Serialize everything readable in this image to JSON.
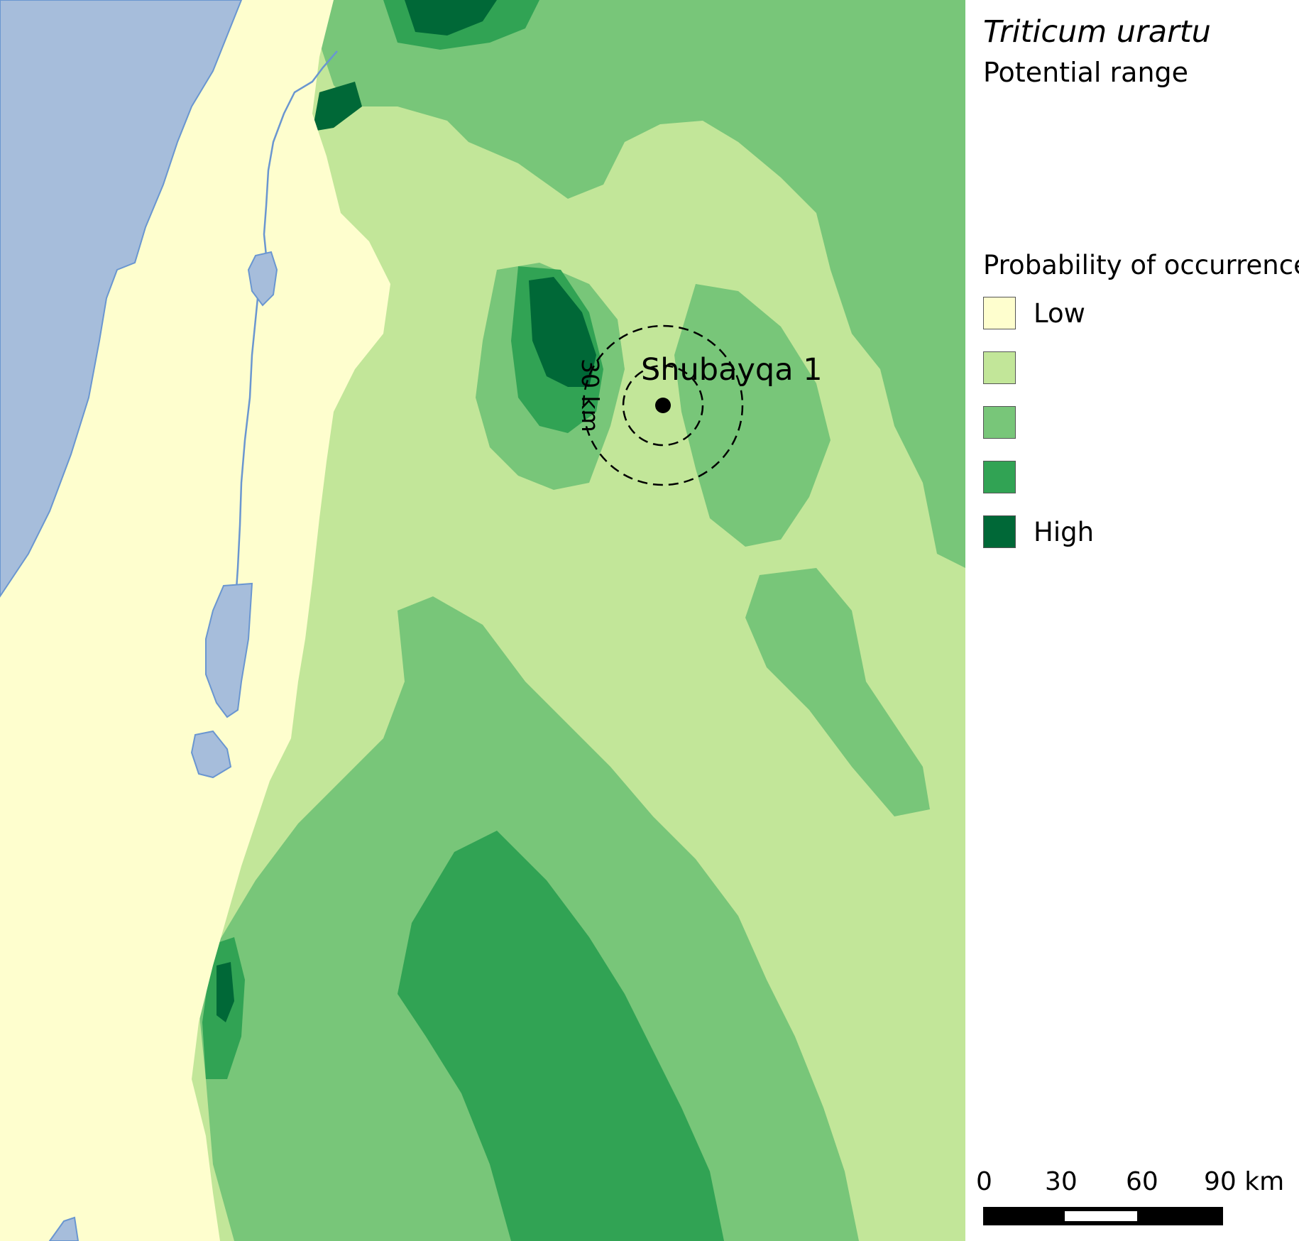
{
  "legend": {
    "title": "Triticum urartu",
    "subtitle": "Potential range",
    "heading": "Probability of occurrence",
    "classes": [
      {
        "label": "Low",
        "color": "#fefece"
      },
      {
        "label": "",
        "color": "#c2e699"
      },
      {
        "label": "",
        "color": "#78c679"
      },
      {
        "label": "",
        "color": "#31a354"
      },
      {
        "label": "High",
        "color": "#006837"
      }
    ]
  },
  "map": {
    "site_label": "Shubayqa 1",
    "ring_label": "30 km",
    "water_color": "#a6bddb",
    "water_outline_color": "#6a96d0"
  },
  "scale_bar": {
    "labels": [
      "0",
      "30",
      "60",
      "90 km"
    ]
  }
}
